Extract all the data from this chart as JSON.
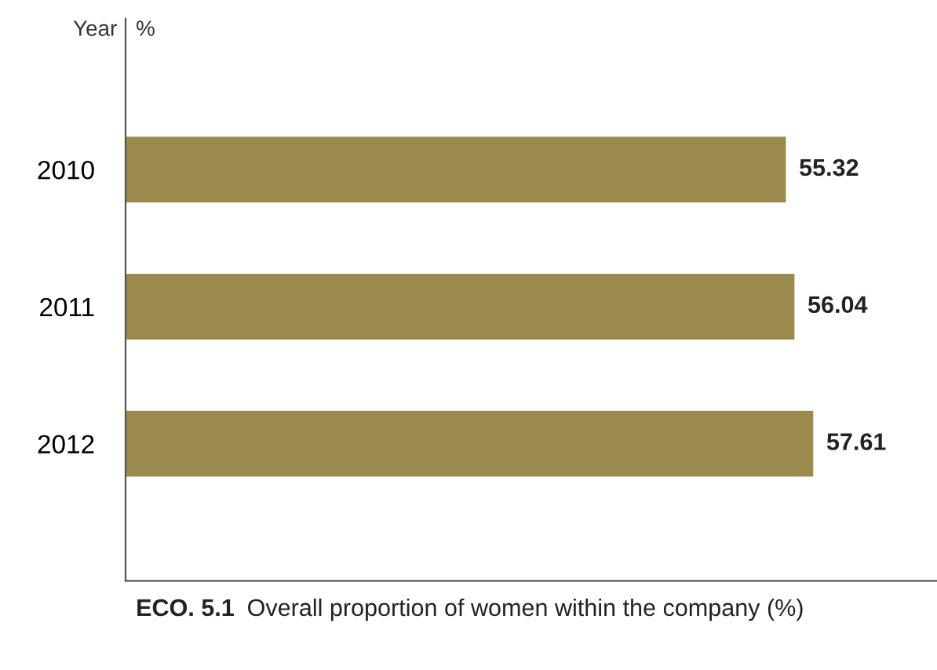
{
  "chart_data": {
    "type": "bar",
    "orientation": "horizontal",
    "xlabel": "%",
    "ylabel": "Year",
    "categories": [
      "2010",
      "2011",
      "2012"
    ],
    "values": [
      55.32,
      56.04,
      57.61
    ],
    "color": "#9a8a4e",
    "data_labels": true,
    "grid": false,
    "legend": false,
    "annotations": [
      "ECO. 5.1",
      "Overall proportion of women within the company (%)"
    ]
  }
}
